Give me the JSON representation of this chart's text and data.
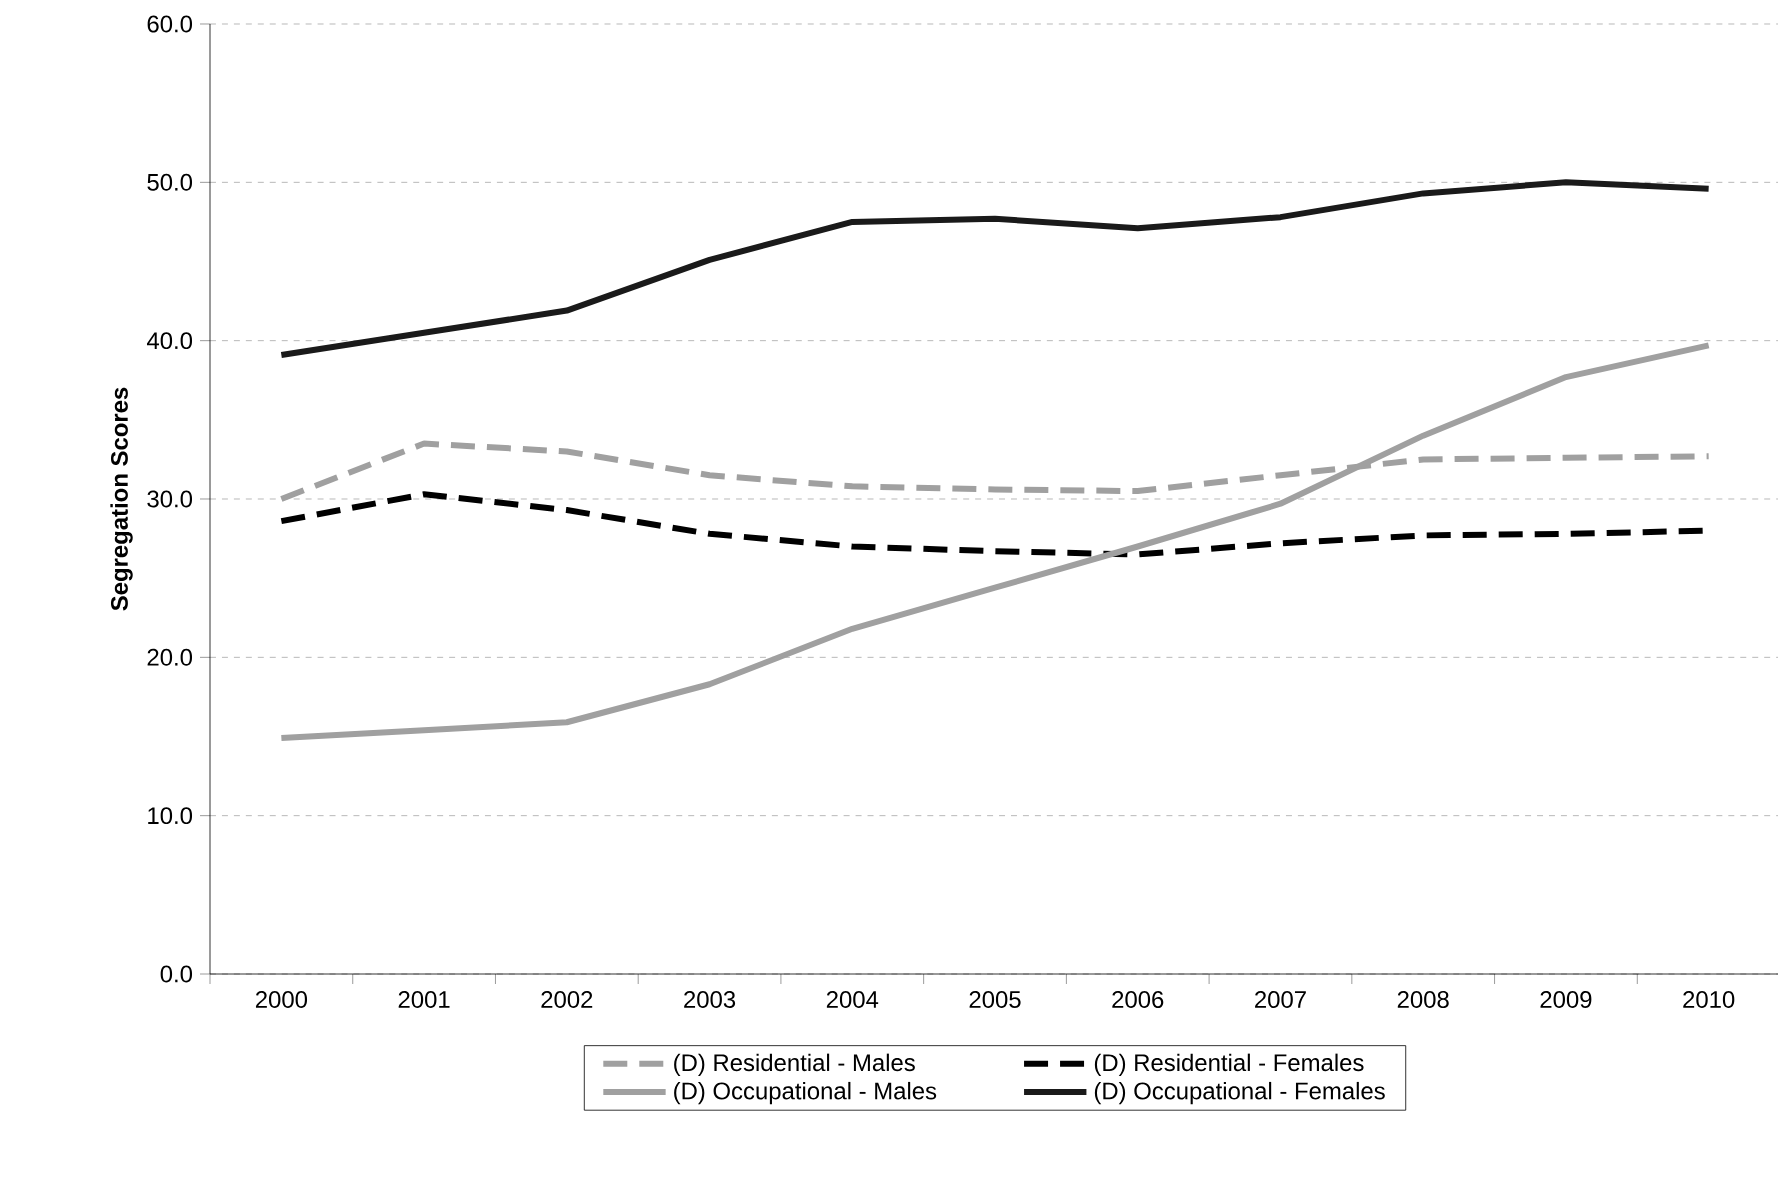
{
  "chart_data": {
    "type": "line",
    "ylabel": "Segregation Scores",
    "categories": [
      "2000",
      "2001",
      "2002",
      "2003",
      "2004",
      "2005",
      "2006",
      "2007",
      "2008",
      "2009",
      "2010"
    ],
    "series": [
      {
        "name": "(D) Residential - Males",
        "color": "#a0a0a0",
        "line_style": "dashed",
        "values": [
          30.0,
          33.5,
          33.0,
          31.5,
          30.8,
          30.6,
          30.5,
          31.5,
          32.5,
          32.6,
          32.7
        ]
      },
      {
        "name": "(D) Residential - Females",
        "color": "#000000",
        "line_style": "dashed",
        "values": [
          28.6,
          30.3,
          29.3,
          27.8,
          27.0,
          26.7,
          26.5,
          27.2,
          27.7,
          27.8,
          28.0
        ]
      },
      {
        "name": "(D) Occupational - Males",
        "color": "#a0a0a0",
        "line_style": "solid",
        "values": [
          14.9,
          15.4,
          15.9,
          18.3,
          21.8,
          24.4,
          27.0,
          29.7,
          34.0,
          37.7,
          39.7
        ]
      },
      {
        "name": "(D) Occupational - Females",
        "color": "#1a1a1a",
        "line_style": "solid",
        "values": [
          39.1,
          40.5,
          41.9,
          45.1,
          47.5,
          47.7,
          47.1,
          47.8,
          49.3,
          50.0,
          49.6
        ]
      }
    ],
    "ylim": [
      0,
      60
    ],
    "yticks": [
      {
        "value": 0,
        "label": "0.0"
      },
      {
        "value": 10,
        "label": "10.0"
      },
      {
        "value": 20,
        "label": "20.0"
      },
      {
        "value": 30,
        "label": "30.0"
      },
      {
        "value": 40,
        "label": "40.0"
      },
      {
        "value": 50,
        "label": "50.0"
      },
      {
        "value": 60,
        "label": "60.0"
      }
    ],
    "grid": "y",
    "legend": "bottom",
    "marker": "none"
  }
}
